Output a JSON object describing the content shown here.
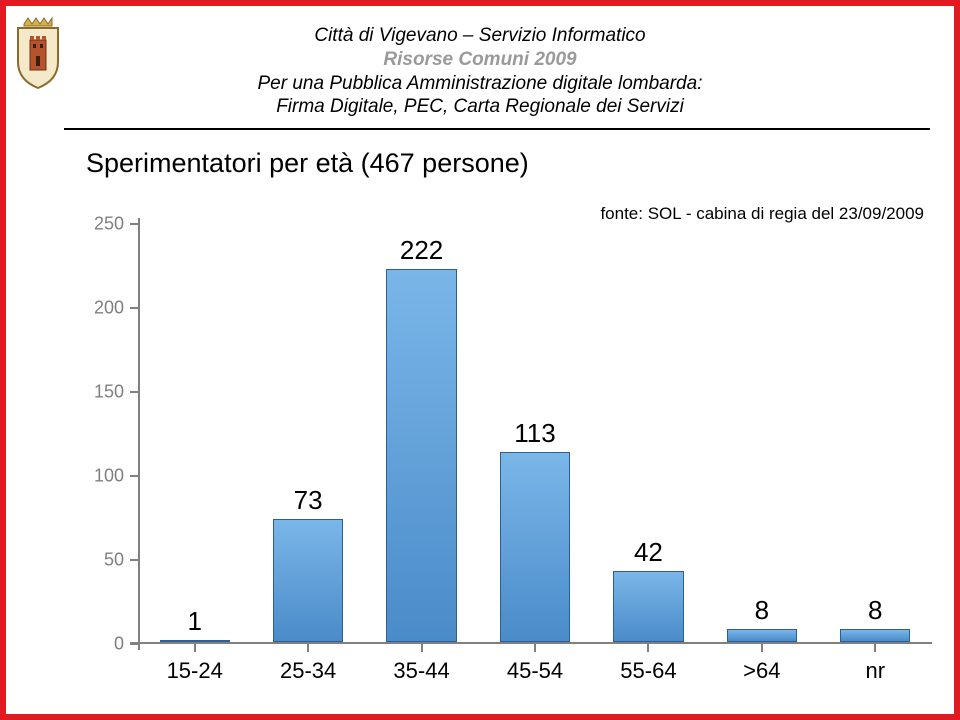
{
  "header": {
    "line1": "Città di Vigevano – Servizio Informatico",
    "line2": "Risorse Comuni 2009",
    "line3": "Per una Pubblica Amministrazione digitale lombarda:",
    "line4": "Firma Digitale, PEC, Carta Regionale dei Servizi"
  },
  "subtitle": "Sperimentatori per età (467 persone)",
  "source": "fonte: SOL - cabina di regia del 23/09/2009",
  "chart": {
    "type": "bar",
    "categories": [
      "15-24",
      "25-34",
      "35-44",
      "45-54",
      "55-64",
      ">64",
      "nr"
    ],
    "values": [
      1,
      73,
      222,
      113,
      42,
      8,
      8
    ],
    "value_labels": [
      "1",
      "73",
      "222",
      "113",
      "42",
      "8",
      "8"
    ],
    "ymin": 0,
    "ymax": 250,
    "ytick_step": 50,
    "yticks": [
      0,
      50,
      100,
      150,
      200,
      250
    ],
    "bar_fill_top": "#7ab6e8",
    "bar_fill_bottom": "#4a8bc9",
    "bar_border": "#2f5e93",
    "axis_color": "#808080",
    "ytick_label_color": "#808080",
    "value_label_fontsize": 26,
    "category_label_fontsize": 22,
    "ytick_label_fontsize": 18,
    "bar_width_ratio": 0.62
  },
  "frame_border_color": "#e21b23",
  "crest": {
    "shield_fill": "#f4e9c9",
    "shield_border": "#8a6b2a",
    "tower_fill": "#b5532d",
    "crown_fill": "#d4b24a"
  }
}
